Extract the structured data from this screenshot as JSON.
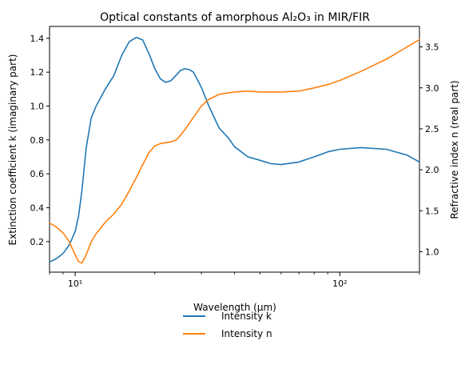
{
  "chart_data": {
    "type": "line",
    "title": "Optical constants of amorphous Al₂O₃ in MIR/FIR",
    "xlabel": "Wavelength (μm)",
    "ylabel_left": "Extinction coefficient k (imaginary part)",
    "ylabel_right": "Refractive index n (real part)",
    "xscale": "log",
    "xlim": [
      8,
      200
    ],
    "xticks": [
      "10¹",
      "10²"
    ],
    "ylim_left": [
      0.02,
      1.47
    ],
    "ylim_right": [
      0.75,
      3.75
    ],
    "yticks_left": [
      "0.2",
      "0.4",
      "0.6",
      "0.8",
      "1.0",
      "1.2",
      "1.4"
    ],
    "yticks_right": [
      "1.0",
      "1.5",
      "2.0",
      "2.5",
      "3.0",
      "3.5"
    ],
    "grid": false,
    "legend_position": "bottom-center-outside",
    "series": [
      {
        "name": "Intensity k",
        "axis": "left",
        "color": "#1f77b4",
        "x": [
          8,
          8.5,
          9,
          9.5,
          10,
          10.3,
          10.6,
          11,
          11.5,
          12,
          13,
          14,
          15,
          16,
          17,
          18,
          19,
          20,
          21,
          22,
          23,
          24,
          25,
          26,
          27,
          28,
          30,
          32,
          35,
          38,
          40,
          45,
          50,
          55,
          60,
          70,
          80,
          90,
          100,
          120,
          150,
          180,
          200
        ],
        "values": [
          0.08,
          0.1,
          0.13,
          0.18,
          0.26,
          0.35,
          0.5,
          0.75,
          0.93,
          1.0,
          1.1,
          1.18,
          1.3,
          1.38,
          1.405,
          1.39,
          1.31,
          1.22,
          1.16,
          1.14,
          1.15,
          1.18,
          1.21,
          1.22,
          1.215,
          1.2,
          1.11,
          1.0,
          0.87,
          0.81,
          0.76,
          0.7,
          0.68,
          0.66,
          0.655,
          0.67,
          0.7,
          0.73,
          0.745,
          0.755,
          0.745,
          0.71,
          0.67
        ]
      },
      {
        "name": "Intensity n",
        "axis": "right",
        "color": "#ff7f0e",
        "x": [
          8,
          8.5,
          9,
          9.5,
          10,
          10.3,
          10.6,
          11,
          11.5,
          12,
          13,
          14,
          15,
          16,
          17,
          18,
          19,
          20,
          21,
          22,
          23,
          24,
          25,
          26,
          28,
          30,
          32,
          35,
          38,
          40,
          45,
          50,
          55,
          60,
          70,
          80,
          90,
          100,
          120,
          150,
          200
        ],
        "values": [
          1.35,
          1.3,
          1.23,
          1.12,
          0.96,
          0.88,
          0.86,
          0.96,
          1.12,
          1.22,
          1.36,
          1.46,
          1.58,
          1.74,
          1.9,
          2.06,
          2.21,
          2.29,
          2.32,
          2.33,
          2.34,
          2.36,
          2.42,
          2.49,
          2.64,
          2.78,
          2.86,
          2.92,
          2.94,
          2.95,
          2.96,
          2.95,
          2.95,
          2.95,
          2.96,
          3.0,
          3.04,
          3.09,
          3.2,
          3.35,
          3.59
        ]
      }
    ]
  }
}
